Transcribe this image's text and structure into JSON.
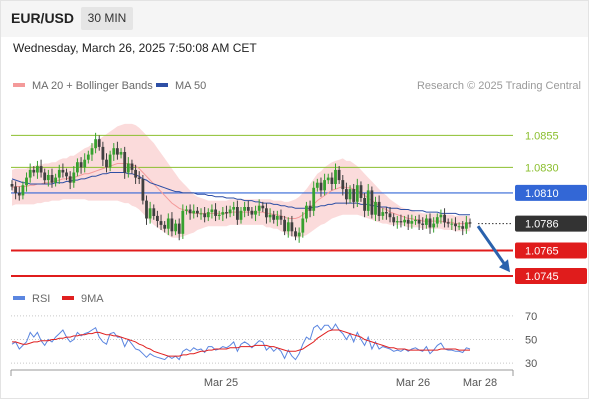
{
  "header": {
    "symbol": "EUR/USD",
    "timeframe": "30 MIN",
    "datetime": "Wednesday, March 26, 2025 7:50:08 AM CET"
  },
  "legend": {
    "ma20_label": "MA 20 + Bollinger Bands",
    "ma50_label": "MA 50",
    "credit": "Research © 2025 Trading Central",
    "rsi_label": "RSI",
    "rsi_ma_label": "9MA"
  },
  "colors": {
    "up": "#37a12f",
    "down": "#404040",
    "ma20": "#f49a9a",
    "band_fill": "#fbd9d9",
    "ma50": "#2e4fa5",
    "pivot_blue": "#3367d6",
    "resistance_green": "#8bbf2e",
    "support_red": "#e01c1c",
    "current_dark": "#333333",
    "rsi": "#5b86e0",
    "rsi_ma": "#e02020",
    "arrow": "#2a62ad"
  },
  "chart_data": [
    {
      "type": "candlestick",
      "title": "EUR/USD",
      "timeframe": "30 MIN",
      "x_tick_labels": [
        "Mar 25",
        "Mar 26",
        "Mar 28"
      ],
      "ylim": [
        1.0738,
        1.0885
      ],
      "price_levels": [
        {
          "value": 1.0855,
          "label": "1.0855",
          "kind": "resistance"
        },
        {
          "value": 1.083,
          "label": "1.0830",
          "kind": "resistance"
        },
        {
          "value": 1.081,
          "label": "1.0810",
          "kind": "pivot"
        },
        {
          "value": 1.0786,
          "label": "1.0786",
          "kind": "current"
        },
        {
          "value": 1.0765,
          "label": "1.0765",
          "kind": "support"
        },
        {
          "value": 1.0745,
          "label": "1.0745",
          "kind": "support"
        }
      ],
      "forecast_arrow": {
        "from": 1.0784,
        "to": 1.0748
      },
      "series": [
        {
          "name": "MA 20 + Bollinger Bands",
          "role": "ma20_bands"
        },
        {
          "name": "MA 50",
          "role": "ma50"
        }
      ],
      "closes": [
        1.0815,
        1.081,
        1.0808,
        1.0816,
        1.0822,
        1.0828,
        1.0826,
        1.0831,
        1.0826,
        1.082,
        1.0824,
        1.0818,
        1.0822,
        1.0828,
        1.0826,
        1.0823,
        1.0818,
        1.0826,
        1.0834,
        1.083,
        1.0836,
        1.084,
        1.0845,
        1.0852,
        1.0846,
        1.0836,
        1.083,
        1.084,
        1.0845,
        1.084,
        1.0842,
        1.0826,
        1.0833,
        1.0828,
        1.0822,
        1.0821,
        1.0804,
        1.079,
        1.0798,
        1.0792,
        1.0788,
        1.0785,
        1.0782,
        1.079,
        1.078,
        1.0786,
        1.0778,
        1.0796,
        1.0797,
        1.0794,
        1.0796,
        1.0794,
        1.0794,
        1.0791,
        1.0795,
        1.0797,
        1.0792,
        1.0793,
        1.0795,
        1.0794,
        1.0797,
        1.0799,
        1.0789,
        1.0796,
        1.0799,
        1.0796,
        1.0793,
        1.0796,
        1.08,
        1.0798,
        1.0791,
        1.0793,
        1.0789,
        1.0792,
        1.0789,
        1.078,
        1.0787,
        1.078,
        1.0776,
        1.0779,
        1.079,
        1.08,
        1.0796,
        1.0814,
        1.0818,
        1.0812,
        1.082,
        1.0822,
        1.0817,
        1.0828,
        1.082,
        1.0813,
        1.0805,
        1.0813,
        1.0803,
        1.0816,
        1.0806,
        1.0796,
        1.0812,
        1.0793,
        1.0803,
        1.0792,
        1.0795,
        1.0794,
        1.0791,
        1.0787,
        1.0788,
        1.0787,
        1.0789,
        1.0786,
        1.0788,
        1.0789,
        1.0786,
        1.0785,
        1.079,
        1.0783,
        1.0786,
        1.0791,
        1.0793,
        1.0787,
        1.0786,
        1.0786,
        1.0784,
        1.0784,
        1.0782,
        1.0787,
        1.0786
      ],
      "ma20": [
        1.0814,
        1.0815,
        1.0815,
        1.0815,
        1.0815,
        1.0816,
        1.0816,
        1.0817,
        1.0817,
        1.0818,
        1.0818,
        1.0819,
        1.0819,
        1.082,
        1.0821,
        1.0821,
        1.0822,
        1.0822,
        1.0823,
        1.0824,
        1.0825,
        1.0825,
        1.0826,
        1.0827,
        1.0828,
        1.0829,
        1.083,
        1.0831,
        1.0832,
        1.0833,
        1.0833,
        1.0833,
        1.0833,
        1.0832,
        1.0831,
        1.0829,
        1.0826,
        1.0823,
        1.082,
        1.0817,
        1.0814,
        1.0811,
        1.0808,
        1.0805,
        1.0802,
        1.08,
        1.0798,
        1.0797,
        1.0796,
        1.0795,
        1.0794,
        1.0794,
        1.0794,
        1.0794,
        1.0794,
        1.0794,
        1.0794,
        1.0794,
        1.0794,
        1.0794,
        1.0795,
        1.0795,
        1.0795,
        1.0795,
        1.0795,
        1.0795,
        1.0795,
        1.0795,
        1.0795,
        1.0795,
        1.0794,
        1.0794,
        1.0793,
        1.0793,
        1.0792,
        1.0791,
        1.079,
        1.079,
        1.079,
        1.0791,
        1.0793,
        1.0795,
        1.0798,
        1.0801,
        1.0804,
        1.0806,
        1.0808,
        1.081,
        1.0812,
        1.0813,
        1.0814,
        1.0815,
        1.0814,
        1.0814,
        1.0813,
        1.0812,
        1.081,
        1.0808,
        1.0806,
        1.0804,
        1.0802,
        1.08,
        1.0798,
        1.0797,
        1.0795,
        1.0794,
        1.0793,
        1.0792,
        1.0791,
        1.079,
        1.079,
        1.0789,
        1.0789,
        1.0788,
        1.0788,
        1.0788,
        1.0788,
        1.0788,
        1.0788,
        1.0787,
        1.0787,
        1.0787,
        1.0786,
        1.0786,
        1.0786,
        1.0786,
        1.0786
      ],
      "bb_width": [
        0.0014,
        0.0014,
        0.0014,
        0.0014,
        0.0014,
        0.0015,
        0.0015,
        0.0015,
        0.0015,
        0.0015,
        0.0015,
        0.0015,
        0.0015,
        0.0016,
        0.0016,
        0.0016,
        0.0017,
        0.0017,
        0.0018,
        0.0019,
        0.002,
        0.0021,
        0.0022,
        0.0023,
        0.0024,
        0.0025,
        0.0026,
        0.0027,
        0.0028,
        0.0029,
        0.003,
        0.0031,
        0.0031,
        0.0032,
        0.0032,
        0.0032,
        0.0032,
        0.0032,
        0.0032,
        0.0032,
        0.0031,
        0.003,
        0.0029,
        0.0028,
        0.0027,
        0.0025,
        0.0023,
        0.0021,
        0.0019,
        0.0017,
        0.0015,
        0.0013,
        0.0012,
        0.0011,
        0.001,
        0.001,
        0.001,
        0.001,
        0.001,
        0.001,
        0.001,
        0.001,
        0.001,
        0.001,
        0.001,
        0.001,
        0.001,
        0.001,
        0.001,
        0.001,
        0.0011,
        0.0011,
        0.0011,
        0.0011,
        0.0012,
        0.0012,
        0.0013,
        0.0014,
        0.0015,
        0.0016,
        0.0017,
        0.0018,
        0.0019,
        0.002,
        0.0021,
        0.0021,
        0.0022,
        0.0022,
        0.0022,
        0.0022,
        0.0022,
        0.0022,
        0.0021,
        0.0021,
        0.002,
        0.0019,
        0.0018,
        0.0017,
        0.0016,
        0.0015,
        0.0014,
        0.0013,
        0.0012,
        0.0011,
        0.001,
        0.0009,
        0.0008,
        0.0007,
        0.0007,
        0.0007,
        0.0007,
        0.0006,
        0.0006,
        0.0006,
        0.0006,
        0.0006,
        0.0006,
        0.0006,
        0.0006,
        0.0006,
        0.0006,
        0.0006,
        0.0006,
        0.0006,
        0.0006,
        0.0006,
        0.0006
      ],
      "ma50": [
        1.0821,
        1.082,
        1.0819,
        1.0818,
        1.0818,
        1.0817,
        1.0817,
        1.0817,
        1.0817,
        1.0817,
        1.0817,
        1.0817,
        1.0818,
        1.0818,
        1.0818,
        1.0819,
        1.0819,
        1.082,
        1.082,
        1.0821,
        1.0821,
        1.0822,
        1.0823,
        1.0823,
        1.0824,
        1.0825,
        1.0825,
        1.0826,
        1.0826,
        1.0826,
        1.0826,
        1.0826,
        1.0825,
        1.0825,
        1.0824,
        1.0823,
        1.0821,
        1.082,
        1.0818,
        1.0817,
        1.0816,
        1.0815,
        1.0814,
        1.0813,
        1.0812,
        1.0811,
        1.0811,
        1.081,
        1.081,
        1.081,
        1.081,
        1.0809,
        1.0809,
        1.0809,
        1.0808,
        1.0808,
        1.0807,
        1.0807,
        1.0807,
        1.0806,
        1.0806,
        1.0806,
        1.0805,
        1.0805,
        1.0804,
        1.0804,
        1.0804,
        1.0803,
        1.0803,
        1.0802,
        1.0802,
        1.0802,
        1.0801,
        1.0801,
        1.08,
        1.08,
        1.0799,
        1.0799,
        1.0798,
        1.0798,
        1.0798,
        1.0798,
        1.0798,
        1.0799,
        1.0799,
        1.08,
        1.08,
        1.0801,
        1.0801,
        1.0802,
        1.0802,
        1.0802,
        1.0802,
        1.0802,
        1.0802,
        1.0802,
        1.0801,
        1.0801,
        1.0801,
        1.08,
        1.08,
        1.0799,
        1.0799,
        1.0799,
        1.0798,
        1.0798,
        1.0798,
        1.0797,
        1.0797,
        1.0797,
        1.0796,
        1.0796,
        1.0796,
        1.0796,
        1.0795,
        1.0795,
        1.0795,
        1.0795,
        1.0794,
        1.0794,
        1.0794,
        1.0794,
        1.0794,
        1.0793,
        1.0793,
        1.0793,
        1.0793
      ]
    },
    {
      "type": "line",
      "title": "RSI",
      "ylim": [
        20,
        80
      ],
      "y_ticks": [
        70,
        50,
        30
      ],
      "series": [
        {
          "name": "RSI",
          "values": [
            46,
            48,
            42,
            45,
            48,
            56,
            52,
            56,
            49,
            45,
            50,
            48,
            52,
            55,
            58,
            52,
            48,
            50,
            56,
            53,
            55,
            56,
            58,
            60,
            52,
            48,
            46,
            55,
            56,
            52,
            52,
            44,
            50,
            46,
            42,
            41,
            38,
            35,
            38,
            36,
            35,
            34,
            33,
            36,
            34,
            36,
            33,
            40,
            42,
            40,
            43,
            41,
            42,
            39,
            44,
            44,
            41,
            42,
            44,
            43,
            45,
            48,
            40,
            46,
            48,
            46,
            43,
            46,
            49,
            48,
            41,
            44,
            40,
            43,
            40,
            34,
            41,
            36,
            33,
            38,
            46,
            52,
            50,
            60,
            62,
            58,
            62,
            62,
            58,
            63,
            58,
            55,
            50,
            55,
            48,
            56,
            50,
            45,
            52,
            42,
            48,
            42,
            44,
            43,
            42,
            40,
            41,
            40,
            42,
            40,
            42,
            43,
            41,
            40,
            44,
            38,
            41,
            45,
            47,
            42,
            41,
            41,
            40,
            40,
            39,
            43,
            42
          ]
        },
        {
          "name": "9MA",
          "values": [
            48,
            48,
            47,
            46,
            46,
            47,
            48,
            48,
            49,
            49,
            49,
            50,
            50,
            51,
            51,
            52,
            52,
            53,
            53,
            54,
            54,
            55,
            55,
            56,
            56,
            55,
            54,
            54,
            53,
            53,
            52,
            51,
            50,
            49,
            48,
            46,
            45,
            43,
            42,
            40,
            39,
            38,
            37,
            36,
            36,
            36,
            36,
            37,
            37,
            38,
            38,
            39,
            40,
            40,
            41,
            41,
            42,
            42,
            42,
            42,
            43,
            43,
            43,
            44,
            44,
            44,
            44,
            45,
            45,
            45,
            45,
            44,
            44,
            43,
            42,
            41,
            40,
            40,
            40,
            41,
            42,
            44,
            46,
            48,
            51,
            53,
            55,
            57,
            58,
            58,
            58,
            57,
            56,
            55,
            54,
            53,
            52,
            50,
            49,
            48,
            47,
            46,
            45,
            44,
            43,
            43,
            42,
            42,
            42,
            41,
            41,
            41,
            41,
            41,
            41,
            41,
            41,
            41,
            42,
            42,
            42,
            42,
            42,
            41,
            41,
            41,
            41
          ]
        }
      ]
    }
  ]
}
